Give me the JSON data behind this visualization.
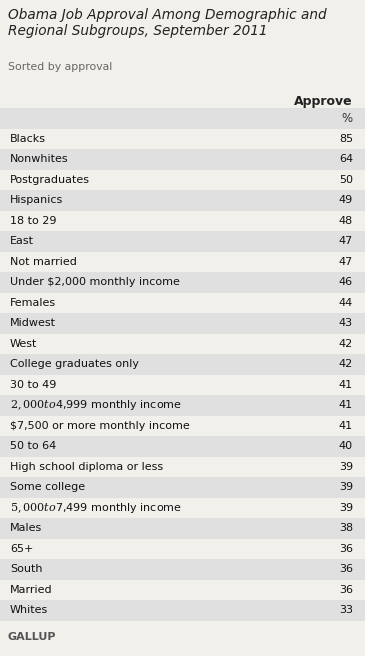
{
  "title": "Obama Job Approval Among Demographic and\nRegional Subgroups, September 2011",
  "subtitle": "Sorted by approval",
  "column_header": "Approve",
  "column_subheader": "%",
  "footer": "GALLUP",
  "rows": [
    {
      "label": "Blacks",
      "value": "85"
    },
    {
      "label": "Nonwhites",
      "value": "64"
    },
    {
      "label": "Postgraduates",
      "value": "50"
    },
    {
      "label": "Hispanics",
      "value": "49"
    },
    {
      "label": "18 to 29",
      "value": "48"
    },
    {
      "label": "East",
      "value": "47"
    },
    {
      "label": "Not married",
      "value": "47"
    },
    {
      "label": "Under $2,000 monthly income",
      "value": "46"
    },
    {
      "label": "Females",
      "value": "44"
    },
    {
      "label": "Midwest",
      "value": "43"
    },
    {
      "label": "West",
      "value": "42"
    },
    {
      "label": "College graduates only",
      "value": "42"
    },
    {
      "label": "30 to 49",
      "value": "41"
    },
    {
      "label": "$2,000 to $4,999 monthly income",
      "value": "41"
    },
    {
      "label": "$7,500 or more monthly income",
      "value": "41"
    },
    {
      "label": "50 to 64",
      "value": "40"
    },
    {
      "label": "High school diploma or less",
      "value": "39"
    },
    {
      "label": "Some college",
      "value": "39"
    },
    {
      "label": "$5,000 to $7,499 monthly income",
      "value": "39"
    },
    {
      "label": "Males",
      "value": "38"
    },
    {
      "label": "65+",
      "value": "36"
    },
    {
      "label": "South",
      "value": "36"
    },
    {
      "label": "Married",
      "value": "36"
    },
    {
      "label": "Whites",
      "value": "33"
    }
  ],
  "shade_color": "#e0e0e0",
  "bg_color": "#f2f0eb",
  "white_color": "#f2f0eb",
  "text_color": "#111111",
  "title_color": "#222222",
  "subtitle_color": "#666666",
  "footer_color": "#555555"
}
